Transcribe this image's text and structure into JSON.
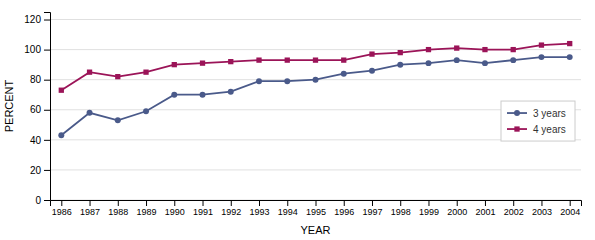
{
  "chart_data": {
    "type": "line",
    "xlabel": "YEAR",
    "ylabel": "PERCENT",
    "x": [
      1986,
      1987,
      1988,
      1989,
      1990,
      1991,
      1992,
      1993,
      1994,
      1995,
      1996,
      1997,
      1998,
      1999,
      2000,
      2001,
      2002,
      2003,
      2004
    ],
    "series": [
      {
        "name": "3 years",
        "color": "#4a5a8a",
        "marker": "circle",
        "values": [
          43,
          58,
          53,
          59,
          70,
          70,
          72,
          79,
          79,
          80,
          84,
          86,
          90,
          91,
          93,
          91,
          93,
          95,
          95
        ]
      },
      {
        "name": "4 years",
        "color": "#9b1458",
        "marker": "square",
        "values": [
          73,
          85,
          82,
          85,
          90,
          91,
          92,
          93,
          93,
          93,
          93,
          97,
          98,
          100,
          101,
          100,
          100,
          103,
          104
        ]
      }
    ],
    "xlim": [
      1985.6,
      2004.4
    ],
    "xticks": [
      1986,
      1987,
      1988,
      1989,
      1990,
      1991,
      1992,
      1993,
      1994,
      1995,
      1996,
      1997,
      1998,
      1999,
      2000,
      2001,
      2002,
      2003,
      2004
    ],
    "ylim": [
      0,
      125
    ],
    "yticks": [
      0,
      20,
      40,
      60,
      80,
      100,
      120
    ],
    "grid": true,
    "legend": "right"
  }
}
